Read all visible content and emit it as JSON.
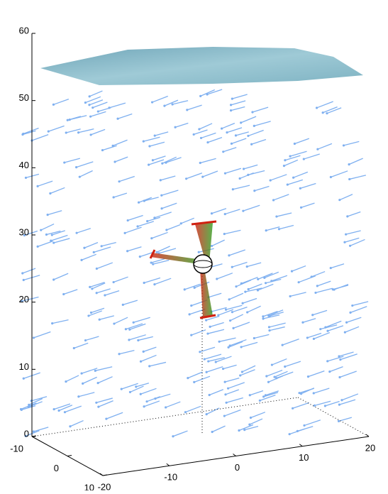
{
  "chart_data": {
    "type": "quiver3d",
    "xlim": [
      -10,
      10
    ],
    "xticks": [
      -10,
      0,
      10
    ],
    "ylim": [
      -20,
      20
    ],
    "yticks": [
      -20,
      -10,
      0,
      10,
      20
    ],
    "zlim": [
      0,
      60
    ],
    "zticks": [
      0,
      10,
      20,
      30,
      40,
      50,
      60
    ],
    "color": "#7fb0f0"
  }
}
